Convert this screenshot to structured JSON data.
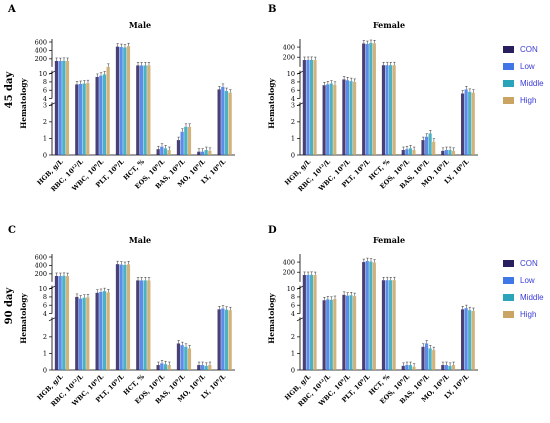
{
  "colors": {
    "CON": "#2a1f5e",
    "Low": "#3f78e6",
    "Middle": "#2aa4b8",
    "High": "#c9a463",
    "axis": "#000000"
  },
  "row_labels": [
    "45 day",
    "90 day"
  ],
  "legends": [
    {
      "items": [
        "CON",
        "Low",
        "Middle",
        "High"
      ]
    },
    {
      "items": [
        "CON",
        "Low",
        "Middle",
        "High"
      ]
    }
  ],
  "chart_data": [
    {
      "panel": "A",
      "title": "Male",
      "type": "bar",
      "ylabel": "Hematology",
      "categories": [
        "HGB, g/L",
        "RBC, 10¹²/L",
        "WBC, 10⁹/L",
        "PLT, 10⁹/L",
        "HCT, %",
        "EOS, 10⁹/L",
        "BAS, 10⁹/L",
        "MO, 10⁹/L",
        "LY, 10⁹/L"
      ],
      "y_segments": [
        {
          "range": [
            0,
            3
          ],
          "ticks": [
            "0",
            "1",
            "2",
            "3"
          ],
          "tick_values": [
            0,
            1,
            2,
            3
          ]
        },
        {
          "range": [
            4,
            10
          ],
          "ticks": [
            "4",
            "6",
            "8",
            "10"
          ],
          "tick_values": [
            4,
            6,
            8,
            10
          ]
        },
        {
          "range": [
            10,
            600
          ],
          "ticks": [
            "200",
            "400",
            "600"
          ],
          "tick_values": [
            200,
            400,
            600
          ]
        }
      ],
      "series": [
        {
          "name": "CON",
          "values": [
            150,
            7.4,
            9.2,
            490,
            44,
            0.35,
            0.9,
            0.2,
            6.2
          ]
        },
        {
          "name": "Low",
          "values": [
            148,
            7.5,
            9.5,
            480,
            43,
            0.5,
            1.4,
            0.2,
            6.8
          ]
        },
        {
          "name": "Middle",
          "values": [
            152,
            7.6,
            9.8,
            470,
            44,
            0.4,
            1.7,
            0.3,
            5.8
          ]
        },
        {
          "name": "High",
          "values": [
            149,
            7.7,
            10.3,
            500,
            45,
            0.3,
            1.7,
            0.25,
            5.4
          ]
        }
      ]
    },
    {
      "panel": "B",
      "title": "Female",
      "type": "bar",
      "ylabel": "Hematology",
      "categories": [
        "HGB, g/L",
        "RBC, 10¹²/L",
        "WBC, 10⁹/L",
        "PLT, 10⁹/L",
        "HCT, %",
        "EOS, 10⁹/L",
        "BAS, 10⁹/L",
        "MO, 10⁹/L",
        "LY, 10⁹/L"
      ],
      "y_segments": [
        {
          "range": [
            0,
            3
          ],
          "ticks": [
            "0",
            "1",
            "2",
            "3"
          ],
          "tick_values": [
            0,
            1,
            2,
            3
          ]
        },
        {
          "range": [
            4,
            10
          ],
          "ticks": [
            "4",
            "6",
            "8",
            "10"
          ],
          "tick_values": [
            4,
            6,
            8,
            10
          ]
        },
        {
          "range": [
            10,
            500
          ],
          "ticks": [
            "200",
            "400"
          ],
          "tick_values": [
            200,
            400
          ]
        }
      ],
      "series": [
        {
          "name": "CON",
          "values": [
            145,
            7.2,
            8.6,
            470,
            42,
            0.3,
            0.9,
            0.25,
            5.2
          ]
        },
        {
          "name": "Low",
          "values": [
            146,
            7.4,
            8.4,
            460,
            43,
            0.35,
            1.1,
            0.3,
            6.2
          ]
        },
        {
          "name": "Middle",
          "values": [
            147,
            7.6,
            8.2,
            480,
            42,
            0.4,
            1.3,
            0.3,
            5.6
          ]
        },
        {
          "name": "High",
          "values": [
            144,
            7.3,
            8.0,
            475,
            43,
            0.3,
            0.8,
            0.25,
            5.4
          ]
        }
      ]
    },
    {
      "panel": "C",
      "title": "Male",
      "type": "bar",
      "ylabel": "Hematology",
      "categories": [
        "HGB, g/L",
        "RBC, 10¹²/L",
        "WBC, 10⁹/L",
        "PLT, 10⁹/L",
        "HCT, %",
        "EOS, 10⁹/L",
        "BAS, 10⁹/L",
        "MO, 10⁹/L",
        "LY, 10⁹/L"
      ],
      "y_segments": [
        {
          "range": [
            0,
            3
          ],
          "ticks": [
            "0",
            "1",
            "2"
          ],
          "tick_values": [
            0,
            1,
            2
          ]
        },
        {
          "range": [
            4,
            10
          ],
          "ticks": [
            "4",
            "6",
            "8",
            "10"
          ],
          "tick_values": [
            4,
            6,
            8,
            10
          ]
        },
        {
          "range": [
            10,
            600
          ],
          "ticks": [
            "200",
            "400",
            "600"
          ],
          "tick_values": [
            200,
            400,
            600
          ]
        }
      ],
      "series": [
        {
          "name": "CON",
          "values": [
            150,
            8.0,
            9.0,
            430,
            45,
            0.3,
            1.6,
            0.3,
            5.0
          ]
        },
        {
          "name": "Low",
          "values": [
            148,
            7.6,
            9.2,
            420,
            44,
            0.4,
            1.5,
            0.3,
            5.2
          ]
        },
        {
          "name": "Middle",
          "values": [
            152,
            7.8,
            9.4,
            410,
            45,
            0.35,
            1.4,
            0.25,
            4.9
          ]
        },
        {
          "name": "High",
          "values": [
            147,
            7.9,
            9.1,
            425,
            44,
            0.3,
            1.3,
            0.3,
            4.8
          ]
        }
      ]
    },
    {
      "panel": "D",
      "title": "Female",
      "type": "bar",
      "ylabel": "Hematology",
      "categories": [
        "HGB, g/L",
        "RBC, 10¹²/L",
        "WBC, 10⁹/L",
        "PLT, 10⁹/L",
        "HCT, %",
        "EOS, 10⁹/L",
        "BAS, 10⁹/L",
        "MO, 10⁹/L",
        "LY, 10⁹/L"
      ],
      "y_segments": [
        {
          "range": [
            0,
            3
          ],
          "ticks": [
            "0",
            "1",
            "2"
          ],
          "tick_values": [
            0,
            1,
            2
          ]
        },
        {
          "range": [
            4,
            10
          ],
          "ticks": [
            "4",
            "6",
            "8",
            "10"
          ],
          "tick_values": [
            4,
            6,
            8,
            10
          ]
        },
        {
          "range": [
            10,
            500
          ],
          "ticks": [
            "200",
            "400"
          ],
          "tick_values": [
            200,
            400
          ]
        }
      ],
      "series": [
        {
          "name": "CON",
          "values": [
            146,
            7.2,
            8.5,
            400,
            42,
            0.25,
            1.4,
            0.3,
            5.0
          ]
        },
        {
          "name": "Low",
          "values": [
            145,
            7.4,
            8.3,
            420,
            43,
            0.3,
            1.6,
            0.3,
            5.3
          ]
        },
        {
          "name": "Middle",
          "values": [
            148,
            7.3,
            8.4,
            410,
            42,
            0.3,
            1.3,
            0.25,
            4.8
          ]
        },
        {
          "name": "High",
          "values": [
            144,
            7.5,
            8.2,
            390,
            43,
            0.2,
            1.2,
            0.3,
            4.6
          ]
        }
      ]
    }
  ]
}
